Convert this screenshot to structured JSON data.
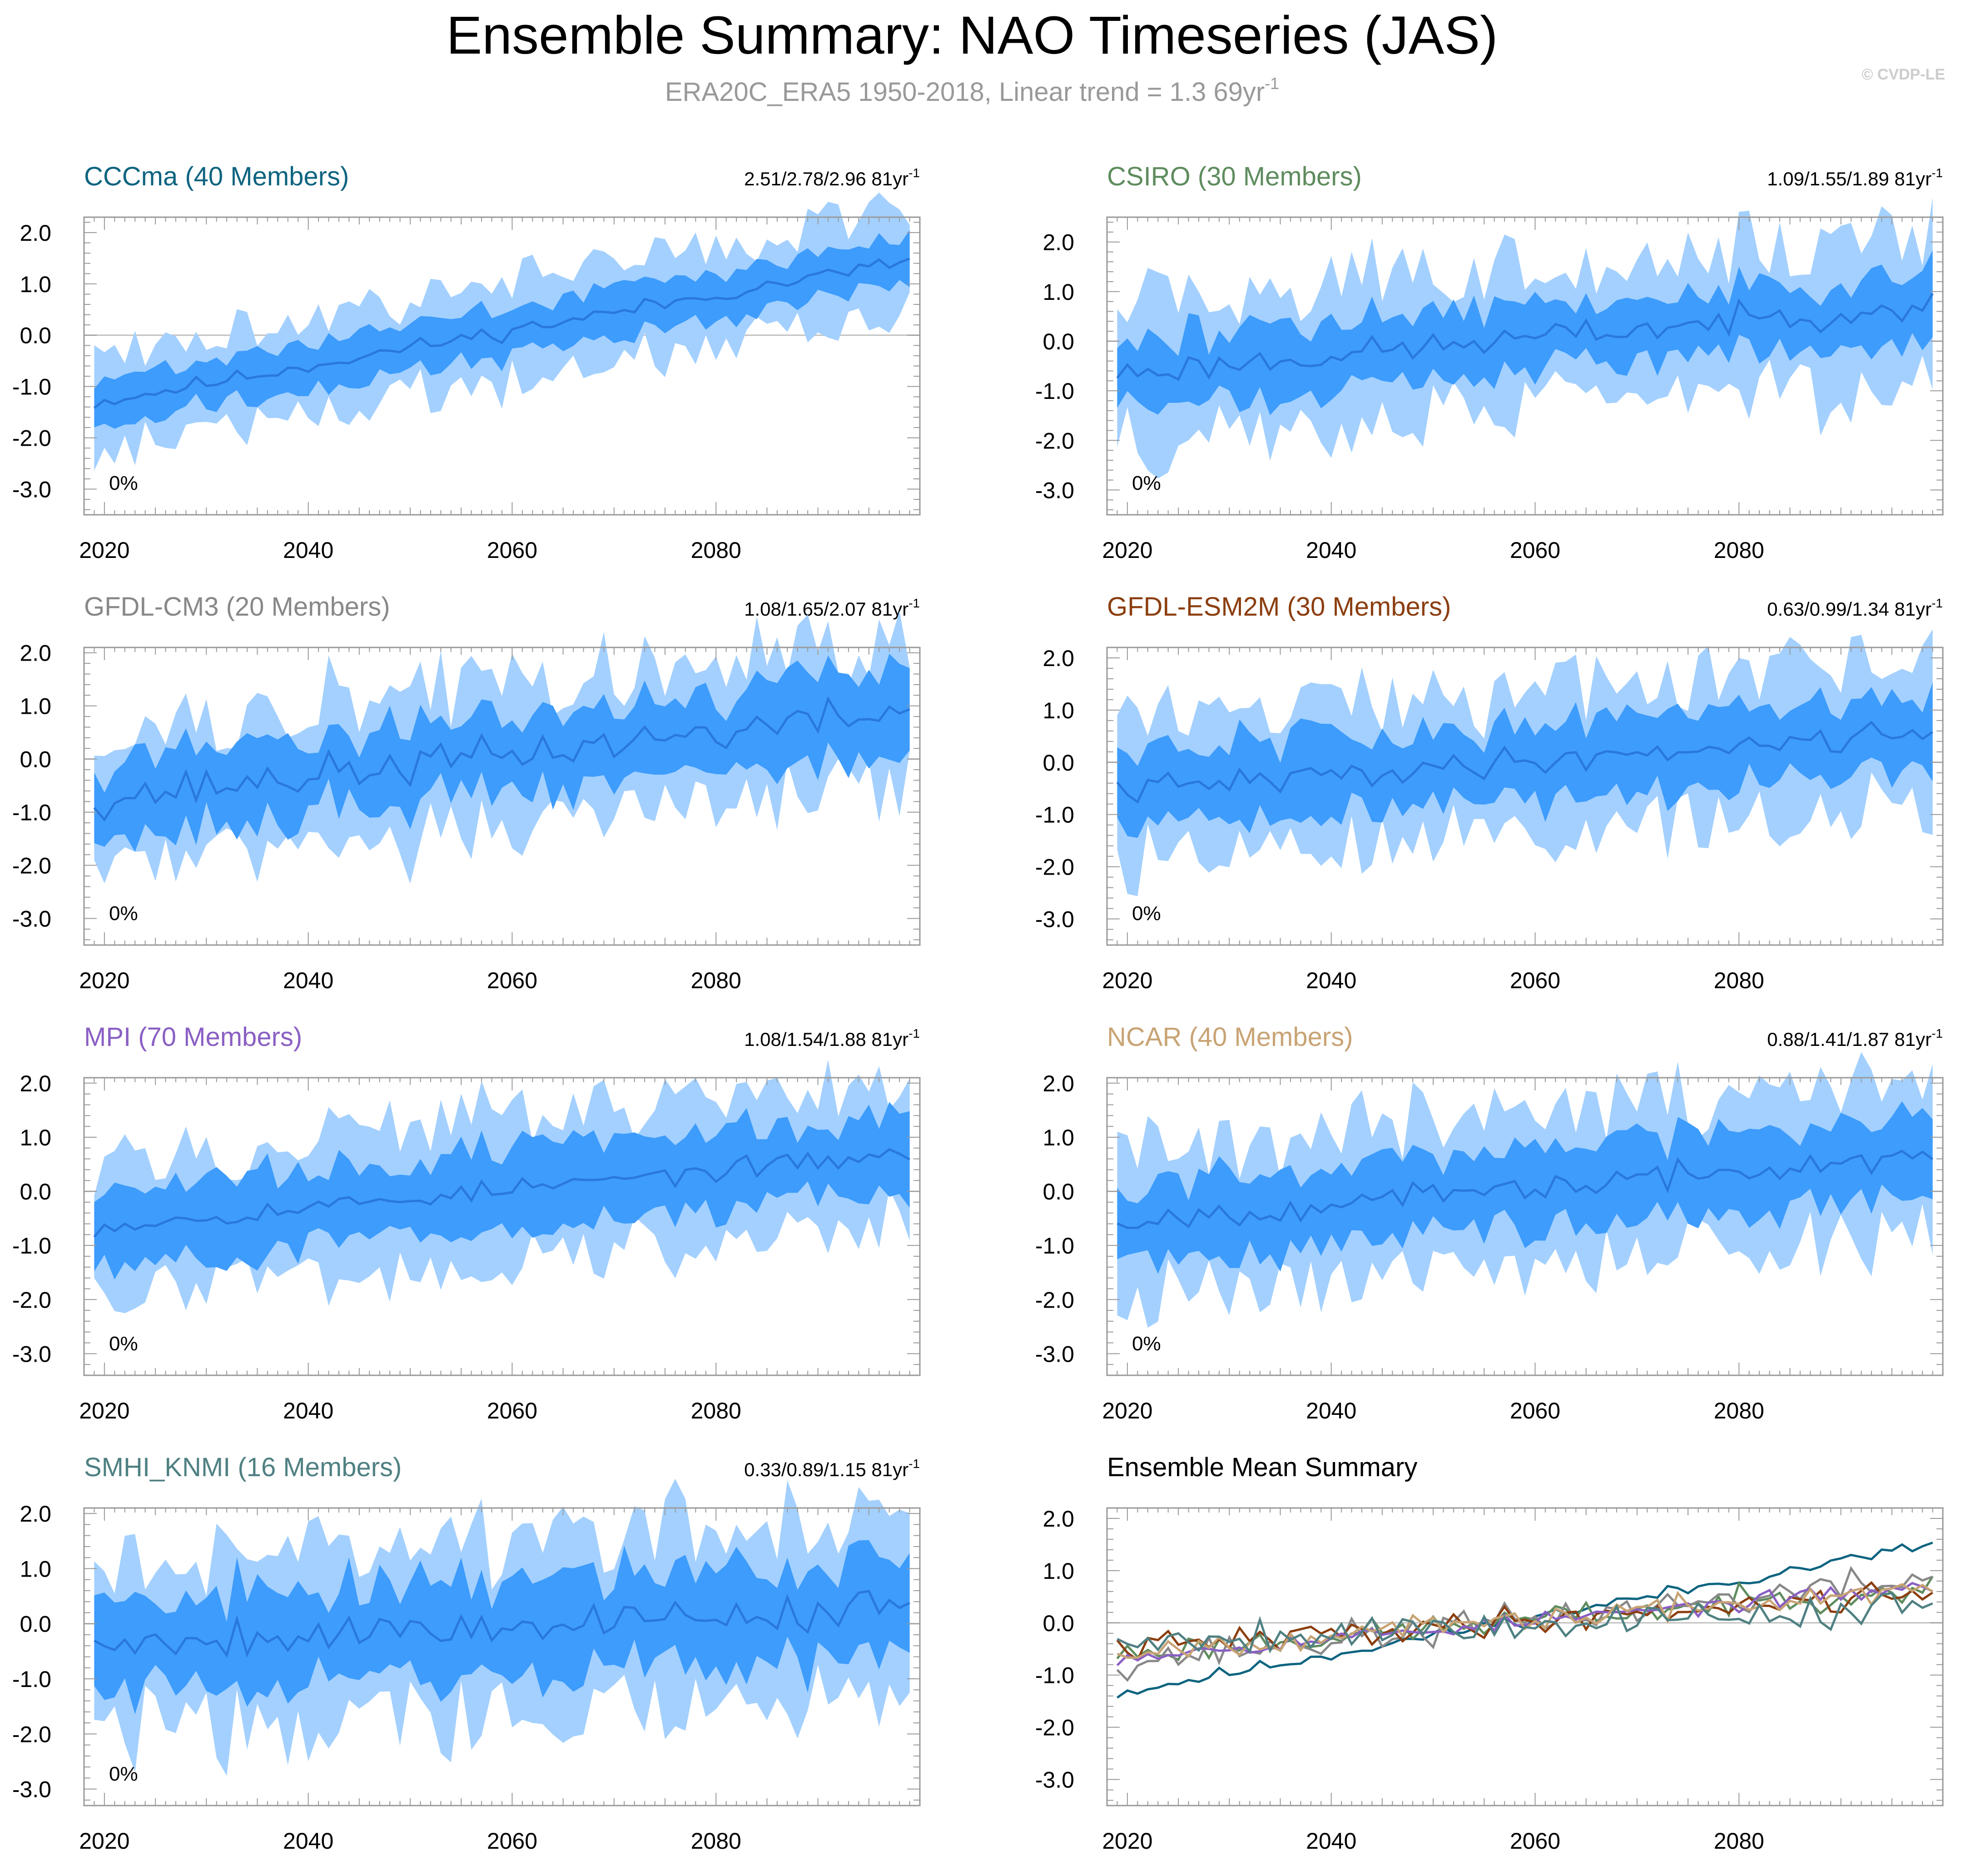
{
  "title": "Ensemble Summary: NAO Timeseries (JAS)",
  "subtitle": "ERA20C_ERA5 1950-2018, Linear trend = 1.3 69yr",
  "subtitle_sup": "-1",
  "watermark": "© CVDP-LE",
  "colors": {
    "band_outer": "#a3d0ff",
    "band_inner": "#3d9cfc",
    "mean_line": "#2a78dc",
    "zero_line": "#c0c0c0",
    "axis": "#999999",
    "text": "#000000",
    "subtitle": "#999999",
    "watermark": "#cccccc"
  },
  "chart_data": [
    {
      "id": "cccma",
      "type": "area",
      "title": "CCCma (40 Members)",
      "title_color": "#0e6480",
      "trend_label": "2.51/2.78/2.96 81yr",
      "trend_sup": "-1",
      "percent_label": "0%",
      "xlim": [
        2018,
        2100
      ],
      "ylim": [
        -3.5,
        2.3
      ],
      "xticks": [
        2020,
        2040,
        2060,
        2080
      ],
      "xtick_labels": [
        "2020",
        "2040",
        "2060",
        "2080"
      ],
      "yticks": [
        2,
        1,
        0,
        -1,
        -2,
        -3
      ],
      "ytick_labels": [
        "2.0",
        "1.0",
        "0.0",
        "-1.0",
        "-2.0",
        "-3.0"
      ],
      "series": {
        "start": -1.32,
        "end": 1.45,
        "inner": 0.45,
        "outer": 0.95,
        "noise": 0.12,
        "seed": 11
      }
    },
    {
      "id": "csiro",
      "type": "area",
      "title": "CSIRO (30 Members)",
      "title_color": "#5e8c5e",
      "trend_label": "1.09/1.55/1.89 81yr",
      "trend_sup": "-1",
      "percent_label": "0%",
      "xlim": [
        2018,
        2100
      ],
      "ylim": [
        -3.5,
        2.5
      ],
      "xticks": [
        2020,
        2040,
        2060,
        2080
      ],
      "xtick_labels": [
        "2020",
        "2040",
        "2060",
        "2080"
      ],
      "yticks": [
        2,
        1,
        0,
        -1,
        -2,
        -3
      ],
      "ytick_labels": [
        "2.0",
        "1.0",
        "0.0",
        "-1.0",
        "-2.0",
        "-3.0"
      ],
      "series": {
        "start": -0.65,
        "end": 0.75,
        "inner": 0.7,
        "outer": 1.45,
        "noise": 0.22,
        "seed": 23
      }
    },
    {
      "id": "gfdl-cm3",
      "type": "area",
      "title": "GFDL-CM3 (20 Members)",
      "title_color": "#888888",
      "trend_label": "1.08/1.65/2.07 81yr",
      "trend_sup": "-1",
      "percent_label": "0%",
      "xlim": [
        2018,
        2100
      ],
      "ylim": [
        -3.5,
        2.1
      ],
      "xticks": [
        2020,
        2040,
        2060,
        2080
      ],
      "xtick_labels": [
        "2020",
        "2040",
        "2060",
        "2080"
      ],
      "yticks": [
        2,
        1,
        0,
        -1,
        -2,
        -3
      ],
      "ytick_labels": [
        "2.0",
        "1.0",
        "0.0",
        "-1.0",
        "-2.0",
        "-3.0"
      ],
      "series": {
        "start": -0.75,
        "end": 0.9,
        "inner": 0.75,
        "outer": 1.35,
        "noise": 0.28,
        "seed": 37
      }
    },
    {
      "id": "gfdl-esm2m",
      "type": "area",
      "title": "GFDL-ESM2M (30 Members)",
      "title_color": "#8b3e0f",
      "trend_label": "0.63/0.99/1.34 81yr",
      "trend_sup": "-1",
      "percent_label": "0%",
      "xlim": [
        2018,
        2100
      ],
      "ylim": [
        -3.5,
        2.2
      ],
      "xticks": [
        2020,
        2040,
        2060,
        2080
      ],
      "xtick_labels": [
        "2020",
        "2040",
        "2060",
        "2080"
      ],
      "yticks": [
        2,
        1,
        0,
        -1,
        -2,
        -3
      ],
      "ytick_labels": [
        "2.0",
        "1.0",
        "0.0",
        "-1.0",
        "-2.0",
        "-3.0"
      ],
      "series": {
        "start": -0.55,
        "end": 0.6,
        "inner": 0.75,
        "outer": 1.4,
        "noise": 0.2,
        "seed": 41
      }
    },
    {
      "id": "mpi",
      "type": "area",
      "title": "MPI (70 Members)",
      "title_color": "#8a5fc4",
      "trend_label": "1.08/1.54/1.88 81yr",
      "trend_sup": "-1",
      "percent_label": "0%",
      "xlim": [
        2018,
        2100
      ],
      "ylim": [
        -3.4,
        2.1
      ],
      "xticks": [
        2020,
        2040,
        2060,
        2080
      ],
      "xtick_labels": [
        "2020",
        "2040",
        "2060",
        "2080"
      ],
      "yticks": [
        2,
        1,
        0,
        -1,
        -2,
        -3
      ],
      "ytick_labels": [
        "2.0",
        "1.0",
        "0.0",
        "-1.0",
        "-2.0",
        "-3.0"
      ],
      "series": {
        "start": -0.65,
        "end": 0.7,
        "inner": 0.7,
        "outer": 1.3,
        "noise": 0.14,
        "seed": 53
      }
    },
    {
      "id": "ncar",
      "type": "area",
      "title": "NCAR (40 Members)",
      "title_color": "#c8a374",
      "trend_label": "0.88/1.41/1.87 81yr",
      "trend_sup": "-1",
      "percent_label": "0%",
      "xlim": [
        2018,
        2100
      ],
      "ylim": [
        -3.4,
        2.1
      ],
      "xticks": [
        2020,
        2040,
        2060,
        2080
      ],
      "xtick_labels": [
        "2020",
        "2040",
        "2060",
        "2080"
      ],
      "yticks": [
        2,
        1,
        0,
        -1,
        -2,
        -3
      ],
      "ytick_labels": [
        "2.0",
        "1.0",
        "0.0",
        "-1.0",
        "-2.0",
        "-3.0"
      ],
      "series": {
        "start": -0.55,
        "end": 0.65,
        "inner": 0.7,
        "outer": 1.35,
        "noise": 0.18,
        "seed": 67
      }
    },
    {
      "id": "smhi-knmi",
      "type": "area",
      "title": "SMHI_KNMI (16 Members)",
      "title_color": "#4f8082",
      "trend_label": "0.33/0.89/1.15 81yr",
      "trend_sup": "-1",
      "percent_label": "0%",
      "xlim": [
        2018,
        2100
      ],
      "ylim": [
        -3.3,
        2.1
      ],
      "xticks": [
        2020,
        2040,
        2060,
        2080
      ],
      "xtick_labels": [
        "2020",
        "2040",
        "2060",
        "2080"
      ],
      "yticks": [
        2,
        1,
        0,
        -1,
        -2,
        -3
      ],
      "ytick_labels": [
        "2.0",
        "1.0",
        "0.0",
        "-1.0",
        "-2.0",
        "-3.0"
      ],
      "series": {
        "start": -0.35,
        "end": 0.3,
        "inner": 0.85,
        "outer": 1.55,
        "noise": 0.28,
        "seed": 79
      }
    },
    {
      "id": "ensemble-mean",
      "type": "line",
      "title": "Ensemble Mean Summary",
      "title_color": "#000000",
      "trend_label": "",
      "trend_sup": "",
      "percent_label": "",
      "xlim": [
        2018,
        2100
      ],
      "ylim": [
        -3.5,
        2.2
      ],
      "xticks": [
        2020,
        2040,
        2060,
        2080
      ],
      "xtick_labels": [
        "2020",
        "2040",
        "2060",
        "2080"
      ],
      "yticks": [
        2,
        1,
        0,
        -1,
        -2,
        -3
      ],
      "ytick_labels": [
        "2.0",
        "1.0",
        "0.0",
        "-1.0",
        "-2.0",
        "-3.0"
      ],
      "series": [
        {
          "name": "CCCma",
          "color": "#0e6480",
          "start": -1.35,
          "end": 1.5,
          "noise": 0.1,
          "seed": 11
        },
        {
          "name": "CSIRO",
          "color": "#5e8c5e",
          "start": -0.6,
          "end": 0.7,
          "noise": 0.2,
          "seed": 23
        },
        {
          "name": "GFDL-CM3",
          "color": "#888888",
          "start": -0.75,
          "end": 0.85,
          "noise": 0.25,
          "seed": 37
        },
        {
          "name": "GFDL-ESM2M",
          "color": "#8b3e0f",
          "start": -0.5,
          "end": 0.6,
          "noise": 0.2,
          "seed": 41
        },
        {
          "name": "MPI",
          "color": "#8a5fc4",
          "start": -0.65,
          "end": 0.7,
          "noise": 0.12,
          "seed": 53
        },
        {
          "name": "NCAR",
          "color": "#c8a374",
          "start": -0.55,
          "end": 0.65,
          "noise": 0.17,
          "seed": 67
        },
        {
          "name": "SMHI_KNMI",
          "color": "#4f8082",
          "start": -0.35,
          "end": 0.3,
          "noise": 0.26,
          "seed": 79
        }
      ]
    }
  ]
}
